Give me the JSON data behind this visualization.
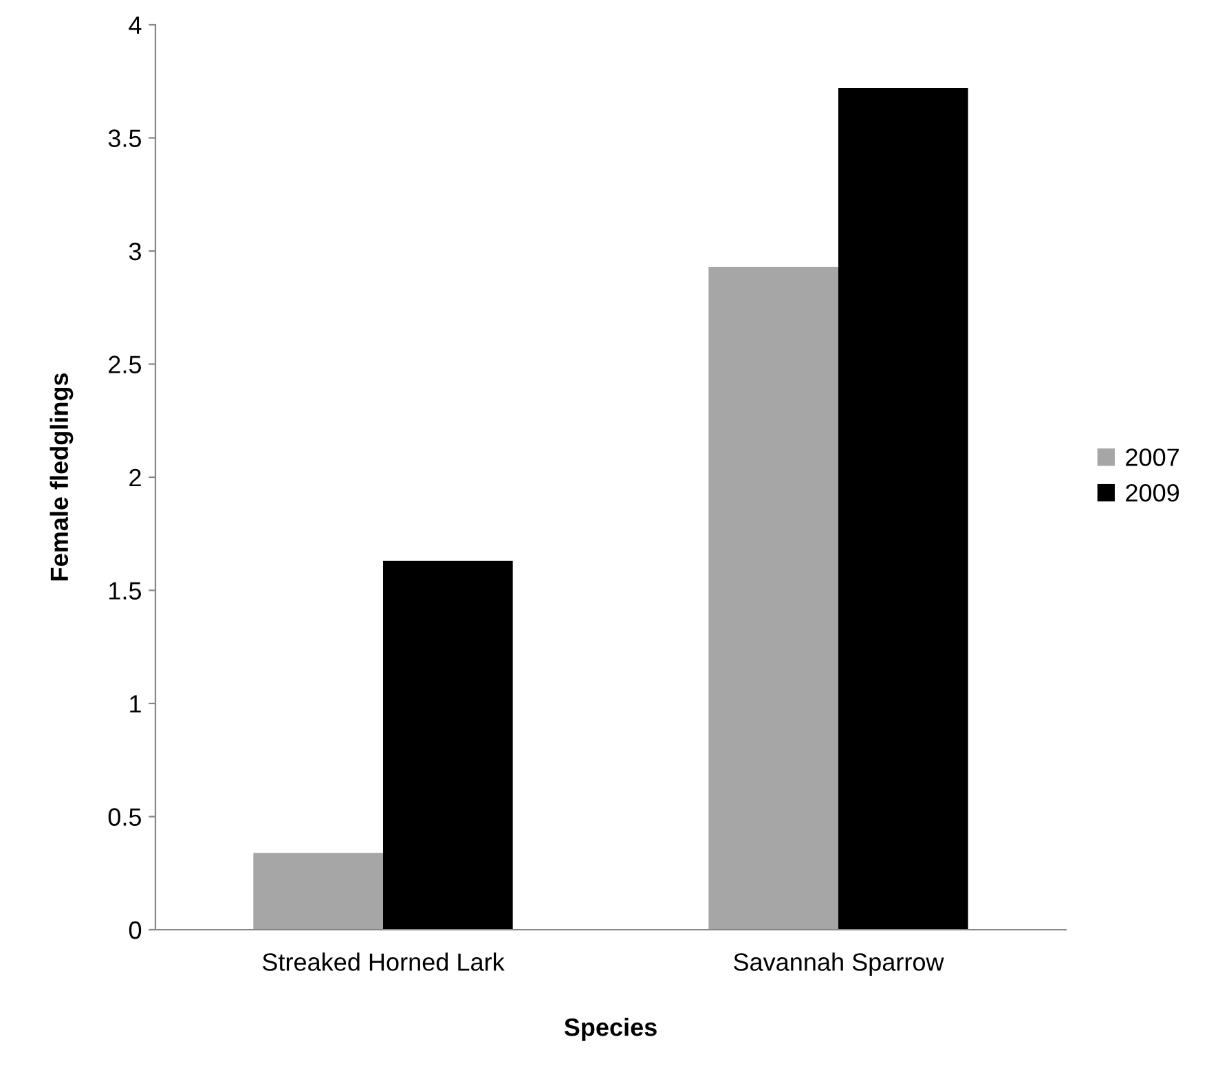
{
  "chart_data": {
    "type": "bar",
    "xlabel": "Species",
    "ylabel": "Female fledglings",
    "categories": [
      "Streaked Horned Lark",
      "Savannah Sparrow"
    ],
    "series": [
      {
        "name": "2007",
        "color": "#a6a6a6",
        "values": [
          0.34,
          2.93
        ]
      },
      {
        "name": "2009",
        "color": "#000000",
        "values": [
          1.63,
          3.72
        ]
      }
    ],
    "ylim": [
      0,
      4
    ],
    "yticks": [
      0,
      0.5,
      1,
      1.5,
      2,
      2.5,
      3,
      3.5,
      4
    ],
    "grid": false,
    "legend": "right"
  }
}
